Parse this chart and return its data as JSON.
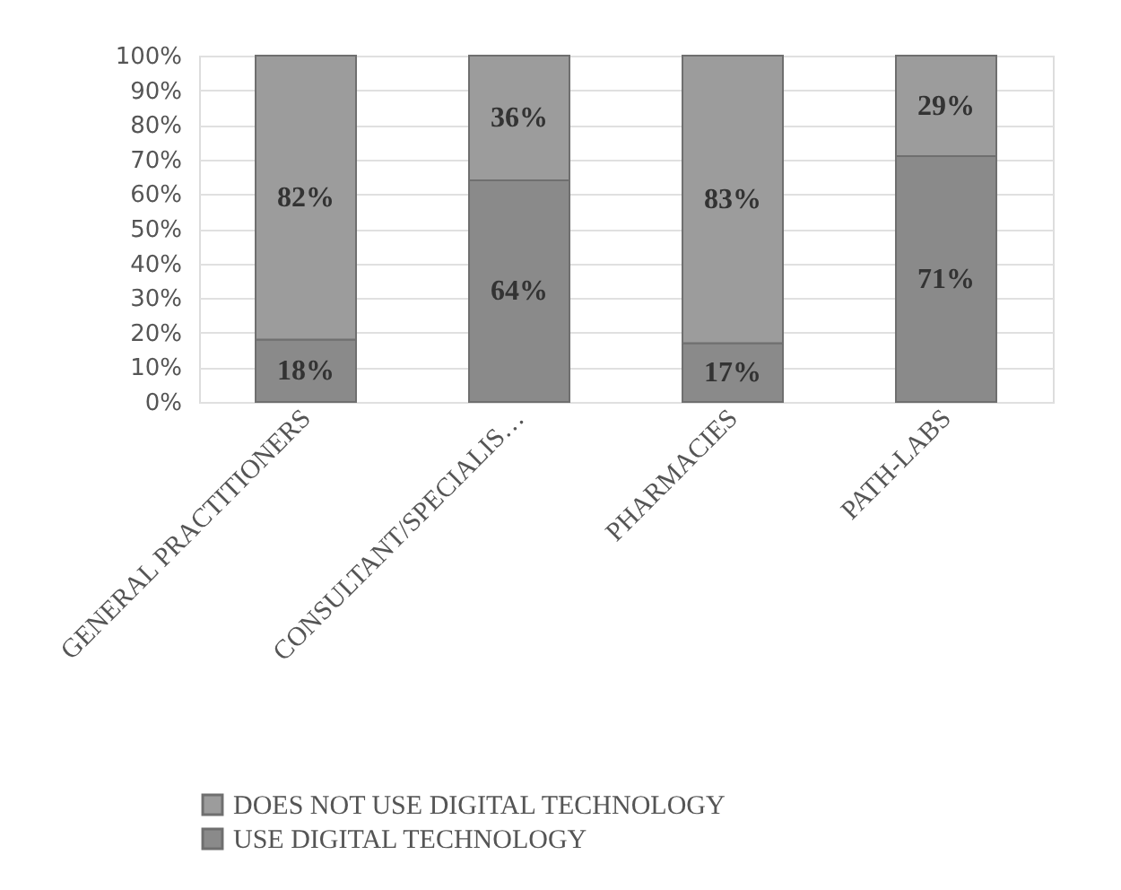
{
  "chart_data": {
    "type": "bar",
    "stacked": true,
    "categories": [
      "GENERAL PRACTITIONERS",
      "CONSULTANT/SPECIALIS…",
      "PHARMACIES",
      "PATH-LABS"
    ],
    "series": [
      {
        "name": "USE DIGITAL TECHNOLOGY",
        "color": "#8a8a8a",
        "values": [
          18,
          64,
          17,
          71
        ],
        "value_labels": [
          "18%",
          "64%",
          "17%",
          "71%"
        ]
      },
      {
        "name": "DOES NOT USE DIGITAL TECHNOLOGY",
        "color": "#9c9c9c",
        "values": [
          82,
          36,
          83,
          29
        ],
        "value_labels": [
          "82%",
          "36%",
          "83%",
          "29%"
        ]
      }
    ],
    "ylim": [
      0,
      100
    ],
    "yticks": [
      {
        "value": 0,
        "label": "0%"
      },
      {
        "value": 10,
        "label": "10%"
      },
      {
        "value": 20,
        "label": "20%"
      },
      {
        "value": 30,
        "label": "30%"
      },
      {
        "value": 40,
        "label": "40%"
      },
      {
        "value": 50,
        "label": "50%"
      },
      {
        "value": 60,
        "label": "60%"
      },
      {
        "value": 70,
        "label": "70%"
      },
      {
        "value": 80,
        "label": "80%"
      },
      {
        "value": 90,
        "label": "90%"
      },
      {
        "value": 100,
        "label": "100%"
      }
    ],
    "grid": "y",
    "legend": "bottom"
  }
}
